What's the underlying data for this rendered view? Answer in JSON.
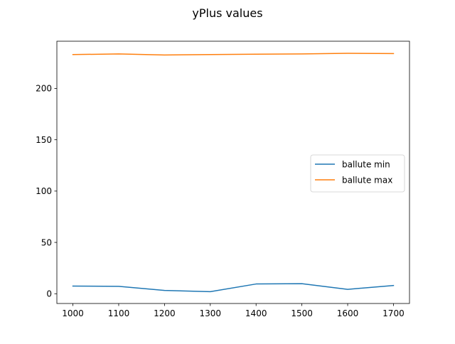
{
  "chart_data": {
    "type": "line",
    "title": "yPlus values",
    "xlabel": "",
    "ylabel": "",
    "x": [
      1000,
      1100,
      1200,
      1300,
      1400,
      1500,
      1600,
      1700
    ],
    "xlim": [
      965,
      1735
    ],
    "ylim": [
      -9.5,
      246
    ],
    "xticks": [
      1000,
      1100,
      1200,
      1300,
      1400,
      1500,
      1600,
      1700
    ],
    "yticks": [
      0,
      50,
      100,
      150,
      200
    ],
    "grid": false,
    "legend_position": "center-right",
    "series": [
      {
        "name": "ballute min",
        "color": "#1f77b4",
        "values": [
          7.5,
          7.2,
          3.2,
          2.0,
          9.5,
          9.8,
          4.3,
          8.0
        ]
      },
      {
        "name": "ballute max",
        "color": "#ff7f0e",
        "values": [
          233.0,
          233.6,
          232.6,
          233.0,
          233.4,
          233.6,
          234.2,
          234.0
        ]
      }
    ]
  }
}
